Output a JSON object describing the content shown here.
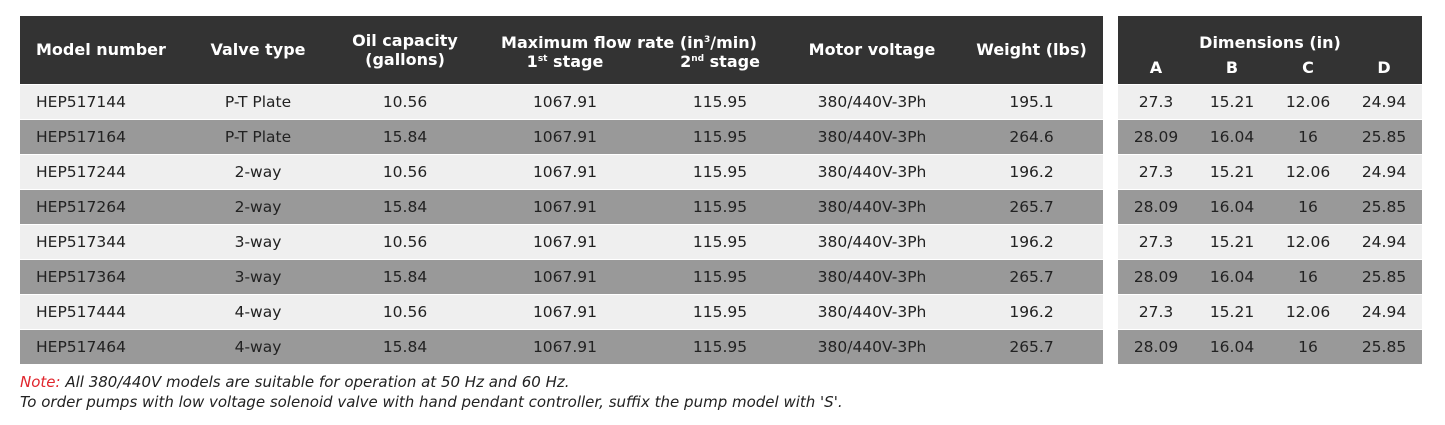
{
  "main_table": {
    "headers": {
      "model": "Model number",
      "valve": "Valve type",
      "oil_1": "Oil capacity",
      "oil_2": "(gallons)",
      "flow": "Maximum flow rate (in",
      "flow_sup": "3",
      "flow_end": "/min)",
      "stage1": "1",
      "stage1_sup": "st",
      "stage1_end": " stage",
      "stage2": "2",
      "stage2_sup": "nd",
      "stage2_end": " stage",
      "motor": "Motor voltage",
      "weight": "Weight (lbs)"
    },
    "rows": [
      [
        "HEP517144",
        "P-T Plate",
        "10.56",
        "1067.91",
        "115.95",
        "380/440V-3Ph",
        "195.1"
      ],
      [
        "HEP517164",
        "P-T Plate",
        "15.84",
        "1067.91",
        "115.95",
        "380/440V-3Ph",
        "264.6"
      ],
      [
        "HEP517244",
        "2-way",
        "10.56",
        "1067.91",
        "115.95",
        "380/440V-3Ph",
        "196.2"
      ],
      [
        "HEP517264",
        "2-way",
        "15.84",
        "1067.91",
        "115.95",
        "380/440V-3Ph",
        "265.7"
      ],
      [
        "HEP517344",
        "3-way",
        "10.56",
        "1067.91",
        "115.95",
        "380/440V-3Ph",
        "196.2"
      ],
      [
        "HEP517364",
        "3-way",
        "15.84",
        "1067.91",
        "115.95",
        "380/440V-3Ph",
        "265.7"
      ],
      [
        "HEP517444",
        "4-way",
        "10.56",
        "1067.91",
        "115.95",
        "380/440V-3Ph",
        "196.2"
      ],
      [
        "HEP517464",
        "4-way",
        "15.84",
        "1067.91",
        "115.95",
        "380/440V-3Ph",
        "265.7"
      ]
    ]
  },
  "dims_table": {
    "title": "Dimensions (in)",
    "headers": [
      "A",
      "B",
      "C",
      "D"
    ],
    "rows": [
      [
        "27.3",
        "15.21",
        "12.06",
        "24.94"
      ],
      [
        "28.09",
        "16.04",
        "16",
        "25.85"
      ],
      [
        "27.3",
        "15.21",
        "12.06",
        "24.94"
      ],
      [
        "28.09",
        "16.04",
        "16",
        "25.85"
      ],
      [
        "27.3",
        "15.21",
        "12.06",
        "24.94"
      ],
      [
        "28.09",
        "16.04",
        "16",
        "25.85"
      ],
      [
        "27.3",
        "15.21",
        "12.06",
        "24.94"
      ],
      [
        "28.09",
        "16.04",
        "16",
        "25.85"
      ]
    ]
  },
  "notes": {
    "label": "Note:",
    "line1": " All 380/440V models are suitable for operation at 50 Hz and 60 Hz.",
    "line2": "To order pumps with low voltage solenoid valve with hand pendant controller, suffix the pump model with 'S'."
  },
  "colors": {
    "header": "#333333",
    "row_light": "#efefef",
    "row_dark": "#999999",
    "note": "#e0262d"
  }
}
